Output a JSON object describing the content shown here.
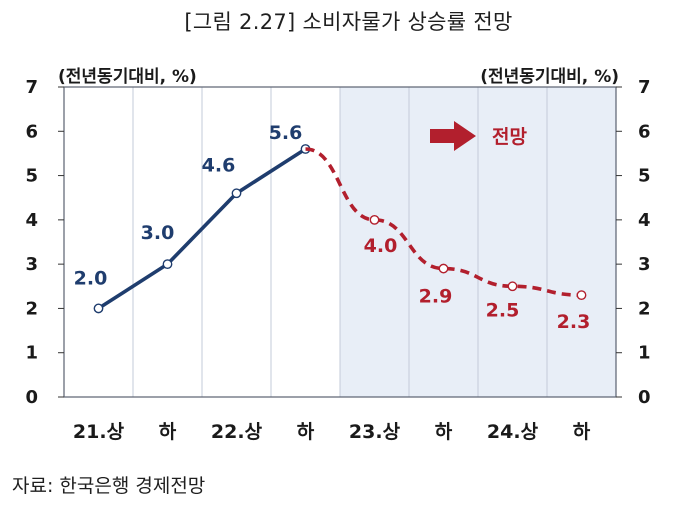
{
  "title": "[그림 2.27] 소비자물가 상승률 전망",
  "source": "자료: 한국은행 경제전망",
  "colors": {
    "actual": "#1f3d6e",
    "forecast": "#b21f2d",
    "shade": "#e8eef7"
  },
  "chart_data": {
    "type": "line",
    "ylabel_left": "(전년동기대비, %)",
    "ylabel_right": "(전년동기대비, %)",
    "ylim": [
      0,
      7
    ],
    "yticks": [
      "0",
      "1",
      "2",
      "3",
      "4",
      "5",
      "6",
      "7"
    ],
    "categories": [
      "21.상",
      "하",
      "22.상",
      "하",
      "23.상",
      "하",
      "24.상",
      "하"
    ],
    "grid": "vertical",
    "forecast_region": {
      "from_category": "23.상",
      "label": "전망"
    },
    "series": [
      {
        "style": "solid",
        "color": "#1f3d6e",
        "x": [
          "21.상",
          "하",
          "22.상",
          "하"
        ],
        "values": [
          2.0,
          3.0,
          4.6,
          5.6
        ],
        "labels": [
          "2.0",
          "3.0",
          "4.6",
          "5.6"
        ]
      },
      {
        "style": "dashed",
        "color": "#b21f2d",
        "x": [
          "하",
          "23.상",
          "하",
          "24.상",
          "하"
        ],
        "values": [
          5.6,
          4.0,
          2.9,
          2.5,
          2.3
        ],
        "labels": [
          "",
          "4.0",
          "2.9",
          "2.5",
          "2.3"
        ]
      }
    ]
  }
}
